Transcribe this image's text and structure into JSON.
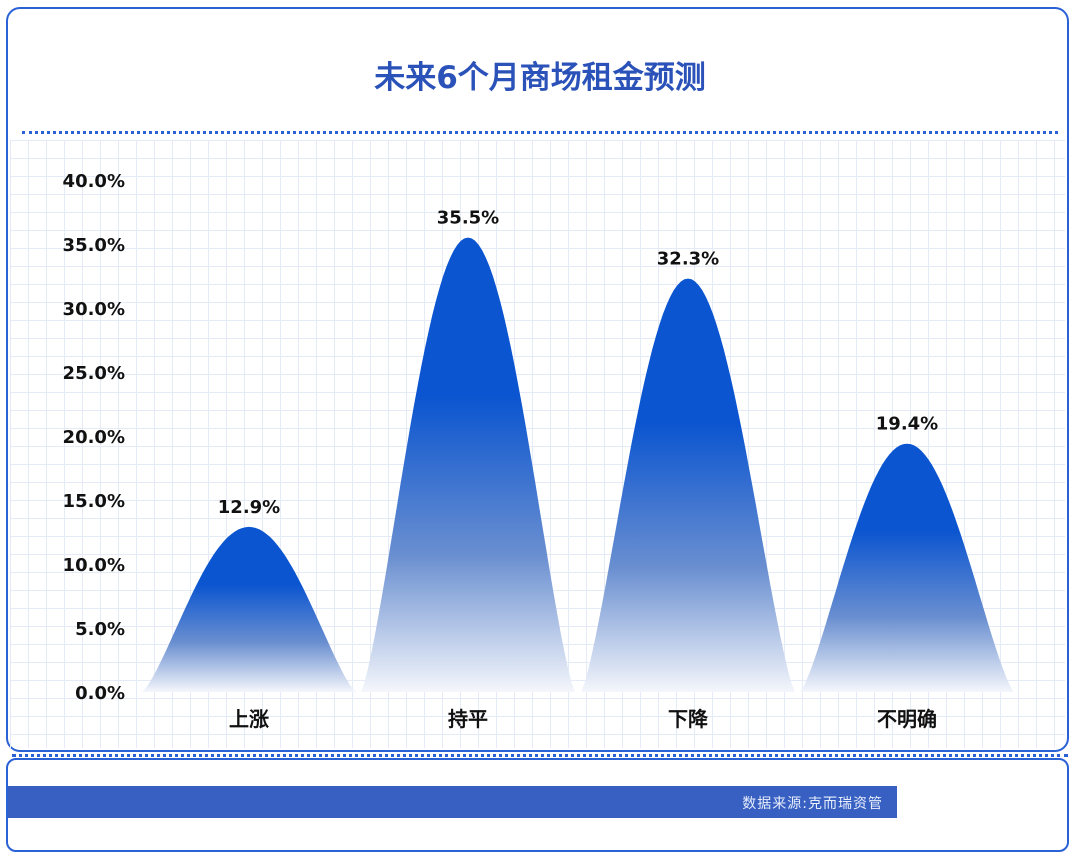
{
  "title": "未来6个月商场租金预测",
  "source": "数据来源:克而瑞资管",
  "colors": {
    "accent": "#2a62d6",
    "bar": "#0b55d0",
    "title": "#2a52b8"
  },
  "chart_data": {
    "type": "bar",
    "title": "未来6个月商场租金预测",
    "categories": [
      "上涨",
      "持平",
      "下降",
      "不明确"
    ],
    "values": [
      12.9,
      35.5,
      32.3,
      19.4
    ],
    "data_labels": [
      "12.9%",
      "35.5%",
      "32.3%",
      "19.4%"
    ],
    "ylim": [
      0,
      40
    ],
    "yticks": [
      "0.0%",
      "5.0%",
      "10.0%",
      "15.0%",
      "20.0%",
      "25.0%",
      "30.0%",
      "35.0%",
      "40.0%"
    ],
    "grid": true,
    "xlabel": "",
    "ylabel": ""
  }
}
